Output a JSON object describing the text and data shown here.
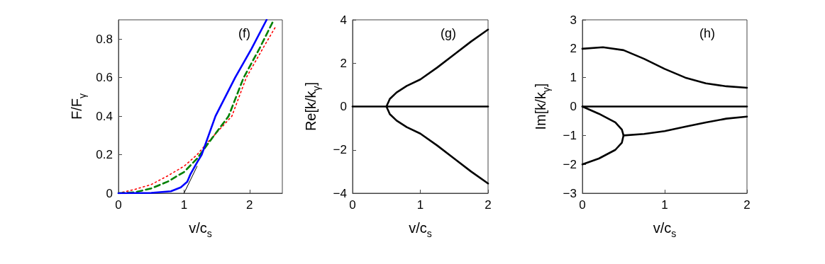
{
  "chart_data": [
    {
      "type": "line",
      "xlabel": "v/c$_{s}$",
      "ylabel": "F/F$_{γ}$",
      "annotations": [
        "(f)"
      ],
      "xlim": [
        0,
        2.5
      ],
      "xticks": [
        0,
        1,
        2
      ],
      "ylim": [
        0,
        0.9
      ],
      "yticks": [
        0,
        0.2,
        0.4,
        0.6,
        0.8
      ],
      "marker": "none",
      "grid": false,
      "series": [
        {
          "color": "#000000",
          "line_style": "solid",
          "x": [
            1,
            1.2
          ],
          "values": [
            0,
            0.14
          ]
        },
        {
          "color": "#ff0000",
          "line_style": "dotted",
          "x": [
            0,
            0.25,
            0.5,
            0.75,
            1,
            1.2,
            1.35,
            1.73,
            1.95,
            2.2,
            2.39
          ],
          "values": [
            0,
            0.02,
            0.045,
            0.09,
            0.14,
            0.2,
            0.26,
            0.4,
            0.6,
            0.75,
            0.86
          ]
        },
        {
          "color": "#008000",
          "line_style": "dashed",
          "x": [
            0,
            0.25,
            0.5,
            0.75,
            1,
            1.2,
            1.35,
            1.68,
            1.91,
            2.15,
            2.37
          ],
          "values": [
            0,
            0.005,
            0.025,
            0.06,
            0.11,
            0.18,
            0.25,
            0.4,
            0.6,
            0.75,
            0.9
          ]
        },
        {
          "color": "#0000ff",
          "line_style": "solid",
          "x": [
            0,
            0.5,
            0.8,
            0.95,
            1.05,
            1.1,
            1.2,
            1.27,
            1.48,
            1.78,
            2.03,
            2.26
          ],
          "values": [
            0,
            0.002,
            0.01,
            0.03,
            0.06,
            0.1,
            0.16,
            0.2,
            0.4,
            0.6,
            0.75,
            0.9
          ]
        }
      ]
    },
    {
      "type": "line",
      "xlabel": "v/c$_{s}$",
      "ylabel": "Re[k/k$_{γ}$]",
      "annotations": [
        "(g)"
      ],
      "xlim": [
        0,
        2
      ],
      "xticks": [
        0,
        1,
        2
      ],
      "ylim": [
        -4,
        4
      ],
      "yticks": [
        -4,
        -2,
        0,
        2,
        4
      ],
      "marker": "none",
      "grid": false,
      "series": [
        {
          "color": "#000000",
          "line_style": "solid",
          "x": [
            0,
            1,
            2
          ],
          "values": [
            0,
            0,
            0
          ]
        },
        {
          "color": "#000000",
          "line_style": "solid",
          "x": [
            2,
            1.75,
            1.5,
            1.25,
            1,
            0.8,
            0.65,
            0.55,
            0.5,
            0.55,
            0.65,
            0.8,
            1,
            1.25,
            1.5,
            1.75,
            2
          ],
          "values": [
            3.55,
            3,
            2.4,
            1.8,
            1.25,
            0.95,
            0.65,
            0.35,
            0,
            -0.35,
            -0.65,
            -0.95,
            -1.25,
            -1.8,
            -2.4,
            -3,
            -3.55
          ]
        }
      ]
    },
    {
      "type": "line",
      "xlabel": "v/c$_{s}$",
      "ylabel": "Im[k/k$_{γ}$]",
      "annotations": [
        "(h)"
      ],
      "xlim": [
        0,
        2
      ],
      "xticks": [
        0,
        1,
        2
      ],
      "ylim": [
        -3,
        3
      ],
      "yticks": [
        -3,
        -2,
        -1,
        0,
        1,
        2,
        3
      ],
      "marker": "none",
      "grid": false,
      "series": [
        {
          "color": "#000000",
          "line_style": "solid",
          "x": [
            0,
            0.25,
            0.5,
            0.75,
            1,
            1.25,
            1.5,
            1.75,
            2
          ],
          "values": [
            2,
            2.05,
            1.95,
            1.65,
            1.3,
            1.0,
            0.8,
            0.7,
            0.65
          ]
        },
        {
          "color": "#000000",
          "line_style": "solid",
          "x": [
            0,
            1,
            2
          ],
          "values": [
            0,
            0,
            0
          ]
        },
        {
          "color": "#000000",
          "line_style": "solid",
          "x": [
            0,
            0.2,
            0.4,
            0.48,
            0.5,
            0.48,
            0.4,
            0.2,
            0
          ],
          "values": [
            0,
            -0.25,
            -0.55,
            -0.8,
            -1,
            -1.25,
            -1.5,
            -1.8,
            -2
          ]
        },
        {
          "color": "#000000",
          "line_style": "solid",
          "x": [
            0.5,
            0.75,
            1,
            1.25,
            1.5,
            1.75,
            2
          ],
          "values": [
            -1,
            -0.95,
            -0.85,
            -0.7,
            -0.55,
            -0.42,
            -0.35
          ]
        }
      ]
    }
  ]
}
